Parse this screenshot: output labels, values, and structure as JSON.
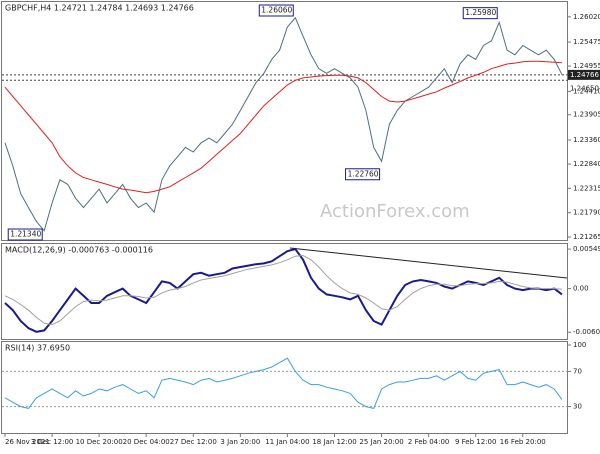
{
  "chart_data": [
    {
      "type": "line",
      "title": "GBPCHF,H4  1.24721 1.24784 1.24693 1.24766",
      "watermark": "ActionForex.com",
      "categories": [
        "26 Nov 2021",
        null,
        null,
        null,
        null,
        null,
        "3 Dec 12:00",
        null,
        null,
        null,
        null,
        null,
        "10 Dec 20:00",
        null,
        null,
        null,
        null,
        null,
        "20 Dec 04:00",
        null,
        null,
        null,
        null,
        null,
        "27 Dec 12:00",
        null,
        null,
        null,
        null,
        null,
        "3 Jan 20:00",
        null,
        null,
        null,
        null,
        null,
        "11 Jan 04:00",
        null,
        null,
        null,
        null,
        null,
        "18 Jan 12:00",
        null,
        null,
        null,
        null,
        null,
        "25 Jan 20:00",
        null,
        null,
        null,
        null,
        null,
        "2 Feb 04:00",
        null,
        null,
        null,
        null,
        null,
        "9 Feb 12:00",
        null,
        null,
        null,
        null,
        null,
        "16 Feb 20:00",
        null,
        null,
        null,
        null,
        null
      ],
      "series": [
        {
          "color": "#4d6f80",
          "values": [
            1.233,
            1.228,
            1.222,
            1.219,
            1.216,
            1.214,
            1.22,
            1.225,
            1.224,
            1.221,
            1.219,
            1.221,
            1.223,
            1.22,
            1.222,
            1.224,
            1.221,
            1.219,
            1.22,
            1.218,
            1.225,
            1.228,
            1.23,
            1.232,
            1.231,
            1.233,
            1.234,
            1.233,
            1.235,
            1.237,
            1.24,
            1.243,
            1.246,
            1.248,
            1.251,
            1.253,
            1.258,
            1.26,
            1.256,
            1.252,
            1.249,
            1.248,
            1.249,
            1.248,
            1.247,
            1.245,
            1.24,
            1.232,
            1.229,
            1.237,
            1.24,
            1.242,
            1.243,
            1.244,
            1.245,
            1.247,
            1.249,
            1.246,
            1.25,
            1.252,
            1.251,
            1.254,
            1.255,
            1.259,
            1.253,
            1.252,
            1.254,
            1.253,
            1.252,
            1.253,
            1.251,
            1.2477
          ]
        },
        {
          "color": "#e02020",
          "values": [
            1.245,
            1.243,
            1.241,
            1.239,
            1.237,
            1.235,
            1.233,
            1.23,
            1.228,
            1.2265,
            1.2255,
            1.225,
            1.2245,
            1.224,
            1.2235,
            1.223,
            1.2228,
            1.2225,
            1.2222,
            1.2225,
            1.223,
            1.2235,
            1.2245,
            1.2255,
            1.2265,
            1.2275,
            1.229,
            1.2305,
            1.232,
            1.2335,
            1.235,
            1.237,
            1.239,
            1.241,
            1.2425,
            1.244,
            1.2455,
            1.2465,
            1.247,
            1.2472,
            1.2474,
            1.2475,
            1.2476,
            1.2476,
            1.2474,
            1.247,
            1.246,
            1.2445,
            1.243,
            1.242,
            1.2418,
            1.242,
            1.2425,
            1.243,
            1.2435,
            1.244,
            1.2448,
            1.2455,
            1.2462,
            1.247,
            1.2476,
            1.2482,
            1.249,
            1.2495,
            1.25,
            1.2502,
            1.2505,
            1.2506,
            1.2506,
            1.2505,
            1.2504,
            1.2503
          ]
        }
      ],
      "ylim": [
        1.212,
        1.2634
      ],
      "yticks": [
        {
          "value": 1.2602,
          "label": "1.26020"
        },
        1.25475,
        1.24955,
        {
          "value": 1.2441,
          "label": "1.24410"
        },
        1.23905,
        {
          "value": 1.2336,
          "label": "1.23360"
        },
        {
          "value": 1.2284,
          "label": "1.22840"
        },
        1.22315,
        {
          "value": 1.2179,
          "label": "1.21790"
        },
        1.21265
      ],
      "price_lines": [
        {
          "value": 1.24766,
          "label": "1.24766"
        },
        {
          "value": 1.2465,
          "label": "1.24650"
        }
      ],
      "annotations": [
        {
          "x": 37,
          "value": 1.2606,
          "label": "1.26060"
        },
        {
          "x": 63,
          "value": 1.2598,
          "label": "1.25980"
        },
        {
          "x": 48,
          "value": 1.2276,
          "label": "1.22760"
        },
        {
          "x": 5,
          "value": 1.2134,
          "label": "1.21340"
        }
      ]
    },
    {
      "type": "line",
      "title": "MACD(12,26,9) -0.000763 -0.000116",
      "series": [
        {
          "color": "#1a1a8c",
          "values": [
            -0.002,
            -0.003,
            -0.0045,
            -0.0055,
            -0.006,
            -0.0058,
            -0.0045,
            -0.003,
            -0.0015,
            0.0,
            -0.001,
            -0.002,
            -0.002,
            -0.001,
            -0.0005,
            0.0,
            -0.001,
            -0.0015,
            -0.002,
            -0.0005,
            0.001,
            0.0008,
            0.0,
            0.001,
            0.002,
            0.0022,
            0.0018,
            0.002,
            0.0022,
            0.0028,
            0.003,
            0.0032,
            0.0034,
            0.0035,
            0.0038,
            0.0045,
            0.0052,
            0.0055,
            0.004,
            0.0015,
            0.0,
            -0.0008,
            -0.001,
            -0.0012,
            -0.0015,
            -0.001,
            -0.003,
            -0.0045,
            -0.005,
            -0.003,
            -0.001,
            0.0005,
            0.001,
            0.0012,
            0.001,
            0.0008,
            0.0003,
            0.0,
            0.0005,
            0.001,
            0.0008,
            0.0005,
            0.001,
            0.0015,
            0.0005,
            0.0,
            -0.0002,
            0.0,
            0.0,
            -0.0002,
            0.0,
            -0.0008
          ]
        },
        {
          "color": "#a0a0a0",
          "values": [
            -0.001,
            -0.0015,
            -0.0022,
            -0.003,
            -0.004,
            -0.0048,
            -0.005,
            -0.0045,
            -0.0035,
            -0.0025,
            -0.0018,
            -0.0016,
            -0.0017,
            -0.0016,
            -0.0013,
            -0.001,
            -0.001,
            -0.0011,
            -0.0013,
            -0.0012,
            -0.0006,
            -0.0002,
            0.0,
            0.0003,
            0.0008,
            0.0012,
            0.0014,
            0.0016,
            0.0018,
            0.0021,
            0.0024,
            0.0027,
            0.0029,
            0.0031,
            0.0033,
            0.0036,
            0.004,
            0.0045,
            0.0046,
            0.004,
            0.003,
            0.0018,
            0.0008,
            0.0,
            -0.0006,
            -0.0008,
            -0.0013,
            -0.002,
            -0.0028,
            -0.003,
            -0.0025,
            -0.0015,
            -0.0006,
            0.0,
            0.0004,
            0.0006,
            0.0006,
            0.0004,
            0.0004,
            0.0006,
            0.0007,
            0.0007,
            0.0008,
            0.001,
            0.0009,
            0.0006,
            0.0003,
            0.0001,
            0.0,
            0.0,
            0.0,
            -0.0001
          ]
        }
      ],
      "ylim": [
        -0.007,
        0.0062
      ],
      "yticks": [
        0.005492,
        {
          "value": 0,
          "label": "0.00"
        },
        -0.006057
      ]
    },
    {
      "type": "line",
      "title": "RSI(14) 37.6950",
      "series": [
        {
          "color": "#3aa0e0",
          "values": [
            40,
            35,
            30,
            28,
            40,
            45,
            50,
            45,
            40,
            48,
            42,
            45,
            50,
            48,
            52,
            55,
            50,
            45,
            48,
            40,
            60,
            62,
            60,
            58,
            55,
            60,
            62,
            58,
            60,
            62,
            65,
            68,
            70,
            72,
            75,
            80,
            85,
            70,
            60,
            55,
            55,
            52,
            50,
            48,
            45,
            35,
            30,
            28,
            50,
            55,
            58,
            58,
            60,
            62,
            62,
            65,
            60,
            65,
            70,
            62,
            60,
            68,
            70,
            72,
            55,
            55,
            58,
            55,
            52,
            55,
            50,
            38
          ]
        }
      ],
      "ylim": [
        0,
        100
      ],
      "yticks": [
        100,
        70,
        30
      ],
      "levels": [
        70,
        30
      ]
    }
  ]
}
